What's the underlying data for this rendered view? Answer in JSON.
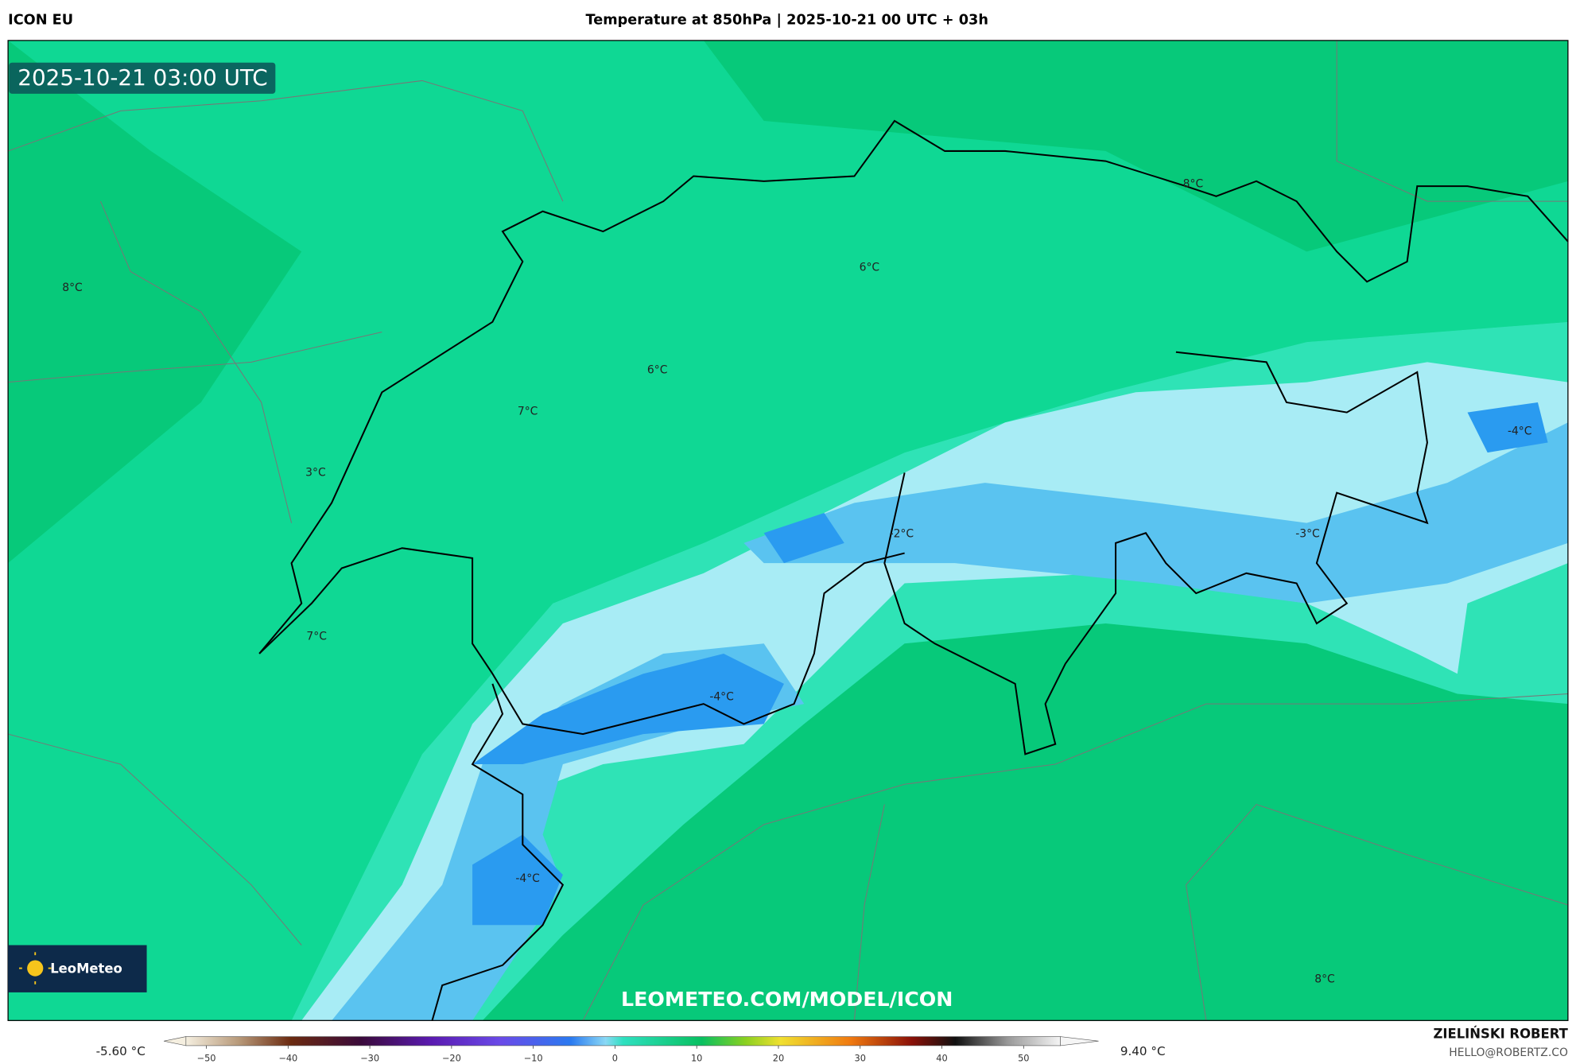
{
  "header": {
    "model": "ICON EU",
    "title": "Temperature at 850hPa | 2025-10-21 00 UTC + 03h"
  },
  "map": {
    "timestamp": "2025-10-21 03:00 UTC",
    "labels": [
      "8°C",
      "6°C",
      "6°C",
      "7°C",
      "3°C",
      "7°C",
      "-2°C",
      "-3°C",
      "-4°C",
      "-4°C",
      "-4°C",
      "8°C",
      "8°C"
    ],
    "watermark": "LEOMETEO.COM/MODEL/ICON",
    "logo": "LeoMeteo"
  },
  "legend": {
    "min_label": "-5.60 °C",
    "max_label": "9.40 °C",
    "colorbar": {
      "lim": [
        -52.5,
        54.5
      ],
      "ticks": [
        {
          "value": -50,
          "label": "−50"
        },
        {
          "value": -40,
          "label": "−40"
        },
        {
          "value": -30,
          "label": "−30"
        },
        {
          "value": -20,
          "label": "−20"
        },
        {
          "value": -10,
          "label": "−10"
        },
        0,
        10,
        20,
        30,
        40,
        50
      ]
    }
  },
  "credit": {
    "author": "ZIELIŃSKI ROBERT",
    "contact": "HELLO@ROBERTZ.CO"
  }
}
